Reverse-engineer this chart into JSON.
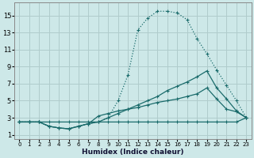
{
  "xlabel": "Humidex (Indice chaleur)",
  "background_color": "#cde8e8",
  "grid_color": "#b0cccc",
  "line_color": "#1a6b6b",
  "xlim": [
    -0.5,
    23.5
  ],
  "ylim": [
    0.5,
    16.5
  ],
  "xticks": [
    0,
    1,
    2,
    3,
    4,
    5,
    6,
    7,
    8,
    9,
    10,
    11,
    12,
    13,
    14,
    15,
    16,
    17,
    18,
    19,
    20,
    21,
    22,
    23
  ],
  "yticks": [
    1,
    3,
    5,
    7,
    9,
    11,
    13,
    15
  ],
  "line1_x": [
    0,
    1,
    2,
    3,
    4,
    5,
    6,
    7,
    8,
    9,
    10,
    11,
    12,
    13,
    14,
    15,
    16,
    17,
    18,
    19,
    20,
    21,
    22,
    23
  ],
  "line1_y": [
    2.5,
    2.5,
    2.5,
    2.0,
    1.8,
    1.7,
    2.0,
    2.3,
    2.5,
    3.0,
    5.0,
    8.0,
    13.3,
    14.7,
    15.5,
    15.5,
    15.3,
    14.5,
    12.3,
    10.5,
    8.6,
    6.8,
    5.0,
    3.0
  ],
  "line2_x": [
    0,
    1,
    2,
    3,
    4,
    5,
    6,
    7,
    8,
    9,
    10,
    11,
    12,
    13,
    14,
    15,
    16,
    17,
    18,
    19,
    20,
    21,
    22,
    23
  ],
  "line2_y": [
    2.5,
    2.5,
    2.5,
    2.0,
    1.8,
    1.7,
    2.0,
    2.3,
    2.5,
    3.0,
    3.5,
    4.0,
    4.5,
    5.0,
    5.5,
    6.2,
    6.7,
    7.2,
    7.8,
    8.5,
    6.5,
    5.2,
    3.8,
    3.0
  ],
  "line3_x": [
    0,
    1,
    2,
    3,
    4,
    5,
    6,
    7,
    8,
    9,
    10,
    11,
    12,
    13,
    14,
    15,
    16,
    17,
    18,
    19,
    20,
    21,
    22,
    23
  ],
  "line3_y": [
    2.5,
    2.5,
    2.5,
    2.0,
    1.8,
    1.7,
    2.0,
    2.3,
    3.2,
    3.5,
    3.8,
    4.0,
    4.2,
    4.5,
    4.8,
    5.0,
    5.2,
    5.5,
    5.8,
    6.5,
    5.2,
    4.0,
    3.7,
    3.0
  ],
  "line4_x": [
    0,
    1,
    2,
    3,
    4,
    5,
    6,
    7,
    8,
    9,
    10,
    11,
    12,
    13,
    14,
    15,
    16,
    17,
    18,
    19,
    20,
    21,
    22,
    23
  ],
  "line4_y": [
    2.5,
    2.5,
    2.5,
    2.5,
    2.5,
    2.5,
    2.5,
    2.5,
    2.5,
    2.5,
    2.5,
    2.5,
    2.5,
    2.5,
    2.5,
    2.5,
    2.5,
    2.5,
    2.5,
    2.5,
    2.5,
    2.5,
    2.5,
    3.0
  ]
}
